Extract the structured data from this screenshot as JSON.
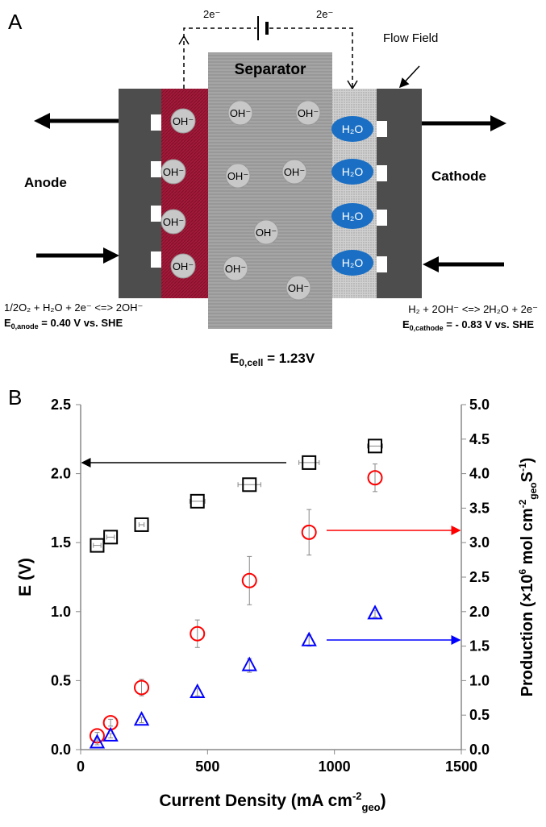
{
  "panel_a": {
    "label": "A",
    "electron_left": "2e⁻",
    "electron_right": "2e⁻",
    "separator": "Separator",
    "flow_field": "Flow Field",
    "anode": "Anode",
    "cathode": "Cathode",
    "anode_ions": [
      "OH⁻",
      "OH⁻",
      "OH⁻",
      "OH⁻"
    ],
    "separator_ions": [
      "OH⁻",
      "OH⁻",
      "OH⁻",
      "OH⁻",
      "OH⁻",
      "OH⁻",
      "OH⁻"
    ],
    "cathode_ions": [
      "H₂O",
      "H₂O",
      "H₂O",
      "H₂O"
    ],
    "anode_reaction": "1/2O₂ + H₂O + 2e⁻ <=> 2OH⁻",
    "anode_potential": [
      "E",
      "0,anode",
      " = 0.40 V vs. SHE"
    ],
    "cathode_reaction": "H₂ + 2OH⁻ <=> 2H₂O + 2e⁻",
    "cathode_potential": [
      "E",
      "0,cathode",
      " = - 0.83 V vs. SHE"
    ],
    "cell_potential": [
      "E",
      "0,cell",
      " = 1.23V"
    ]
  },
  "chart_data": {
    "type": "scatter",
    "label": "B",
    "x_label": [
      "Current Density (mA cm",
      "-2",
      "geo",
      ")"
    ],
    "y_label": "E (V)",
    "y2_label": [
      "Production (×10",
      "6",
      " mol cm",
      "-2",
      "geo",
      "S",
      "-1",
      ")"
    ],
    "xlim": [
      0,
      1500
    ],
    "xticks": [
      0,
      500,
      1000,
      1500
    ],
    "ylim": [
      0,
      2.5
    ],
    "yticks": [
      {
        "value": 0,
        "label": "0.0"
      },
      0.5,
      {
        "value": 1,
        "label": "1.0"
      },
      1.5,
      {
        "value": 2,
        "label": "2.0"
      },
      2.5
    ],
    "y2lim": [
      0,
      5
    ],
    "y2ticks": [
      {
        "value": 0,
        "label": "0.0"
      },
      0.5,
      {
        "value": 1,
        "label": "1.0"
      },
      1.5,
      {
        "value": 2,
        "label": "2.0"
      },
      2.5,
      {
        "value": 3,
        "label": "3.0"
      },
      3.5,
      {
        "value": 4,
        "label": "4.0"
      },
      4.5,
      {
        "value": 5,
        "label": "5.0"
      }
    ],
    "x": [
      65,
      118,
      240,
      460,
      665,
      900,
      1160
    ],
    "series": [
      {
        "marker": "square",
        "color": "#000000",
        "values": [
          1.48,
          1.54,
          1.63,
          1.8,
          1.92,
          2.08,
          2.2
        ],
        "xerr": [
          15,
          15,
          10,
          30,
          45,
          40,
          30
        ]
      },
      {
        "marker": "circle",
        "color": "#ff0000",
        "axis": "y2",
        "values": [
          0.2,
          0.39,
          0.9,
          1.68,
          2.45,
          3.15,
          3.94
        ],
        "yerr": [
          0.05,
          0.05,
          0.12,
          0.2,
          0.35,
          0.33,
          0.2
        ]
      },
      {
        "marker": "triangle",
        "color": "#0000ff",
        "axis": "y2",
        "values": [
          0.1,
          0.2,
          0.43,
          0.83,
          1.22,
          1.58,
          1.97
        ],
        "yerr": [
          0.03,
          0.03,
          0.04,
          0.05,
          0.1,
          0.08,
          0.05
        ]
      }
    ]
  }
}
